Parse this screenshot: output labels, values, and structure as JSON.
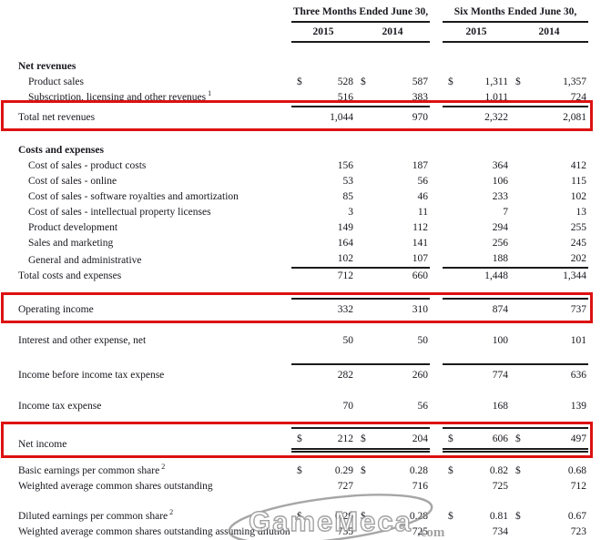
{
  "document": {
    "groups": [
      "Three Months Ended June 30,",
      "Six Months Ended June 30,"
    ],
    "years": [
      "2015",
      "2014",
      "2015",
      "2014"
    ],
    "rows": [
      {
        "id": "net-revenues-header",
        "label": "Net revenues",
        "bold": true,
        "indent": 0,
        "values": null,
        "gap": 18
      },
      {
        "id": "product-sales",
        "label": "Product sales",
        "indent": 1,
        "dollar": true,
        "values": [
          "528",
          "587",
          "1,311",
          "1,357"
        ]
      },
      {
        "id": "subscription-licensing",
        "label": "Subscription, licensing and other revenues",
        "sup": "1",
        "indent": 1,
        "values": [
          "516",
          "383",
          "1,011",
          "724"
        ]
      },
      {
        "id": "total-net-revenues",
        "label": "Total net revenues",
        "indent": 0,
        "values": [
          "1,044",
          "970",
          "2,322",
          "2,081"
        ],
        "rule": "top",
        "boxed": true
      },
      {
        "id": "costs-and-expenses-header",
        "label": "Costs and expenses",
        "bold": true,
        "indent": 0,
        "values": null,
        "gap": 19
      },
      {
        "id": "cost-of-sales-product-costs",
        "label": "Cost of sales - product costs",
        "indent": 1,
        "values": [
          "156",
          "187",
          "364",
          "412"
        ]
      },
      {
        "id": "cost-of-sales-online",
        "label": "Cost of sales - online",
        "indent": 1,
        "values": [
          "53",
          "56",
          "106",
          "115"
        ]
      },
      {
        "id": "cost-of-sales-software-royalties",
        "label": "Cost of sales - software royalties and amortization",
        "indent": 1,
        "values": [
          "85",
          "46",
          "233",
          "102"
        ]
      },
      {
        "id": "cost-of-sales-ip-licenses",
        "label": "Cost of sales - intellectual property licenses",
        "indent": 1,
        "values": [
          "3",
          "11",
          "7",
          "13"
        ]
      },
      {
        "id": "product-development",
        "label": "Product development",
        "indent": 1,
        "values": [
          "149",
          "112",
          "294",
          "255"
        ]
      },
      {
        "id": "sales-and-marketing",
        "label": "Sales and marketing",
        "indent": 1,
        "values": [
          "164",
          "141",
          "256",
          "245"
        ]
      },
      {
        "id": "general-and-administrative",
        "label": "General and administrative",
        "indent": 1,
        "values": [
          "102",
          "107",
          "188",
          "202"
        ],
        "rule": "bottom"
      },
      {
        "id": "total-costs-and-expenses",
        "label": "Total costs and expenses",
        "indent": 0,
        "values": [
          "712",
          "660",
          "1,448",
          "1,344"
        ]
      },
      {
        "id": "operating-income",
        "label": "Operating income",
        "indent": 0,
        "values": [
          "332",
          "310",
          "874",
          "737"
        ],
        "rule": "top",
        "boxed": true,
        "gap": 15
      },
      {
        "id": "interest-and-other-expense-net",
        "label": "Interest and other expense, net",
        "indent": 0,
        "values": [
          "50",
          "50",
          "100",
          "101"
        ],
        "gap": 17
      },
      {
        "id": "income-before-income-tax-expense",
        "label": "Income before income tax expense",
        "indent": 0,
        "values": [
          "282",
          "260",
          "774",
          "636"
        ],
        "rule": "top",
        "gap": 16
      },
      {
        "id": "income-tax-expense",
        "label": "Income tax expense",
        "indent": 0,
        "values": [
          "70",
          "56",
          "168",
          "139"
        ],
        "gap": 17
      },
      {
        "id": "net-income",
        "label": "Net income",
        "indent": 0,
        "dollar": true,
        "values": [
          "212",
          "204",
          "606",
          "497"
        ],
        "rule": "top-double",
        "boxed": true,
        "gap": 14
      },
      {
        "id": "basic-eps",
        "label": "Basic earnings per common share",
        "sup": "2",
        "indent": 0,
        "dollar": true,
        "values": [
          "0.29",
          "0.28",
          "0.82",
          "0.68"
        ],
        "gap": 12
      },
      {
        "id": "weighted-average-shares",
        "label": "Weighted average common shares outstanding",
        "indent": 0,
        "values": [
          "727",
          "716",
          "725",
          "712"
        ]
      },
      {
        "id": "diluted-eps",
        "label": "Diluted earnings per common share",
        "sup": "2",
        "indent": 0,
        "dollar": true,
        "values": [
          "0.29",
          "0.28",
          "0.81",
          "0.67"
        ],
        "gap": 16
      },
      {
        "id": "weighted-average-shares-diluted",
        "label": "Weighted average common shares outstanding assuming dilution",
        "indent": 0,
        "values": [
          "735",
          "725",
          "734",
          "723"
        ]
      }
    ],
    "highlight_color": "#dd1111",
    "dollar_symbol": "$",
    "footnote_mark": "1",
    "watermark": {
      "name": "GameMeca",
      "suffix": ".com"
    }
  }
}
